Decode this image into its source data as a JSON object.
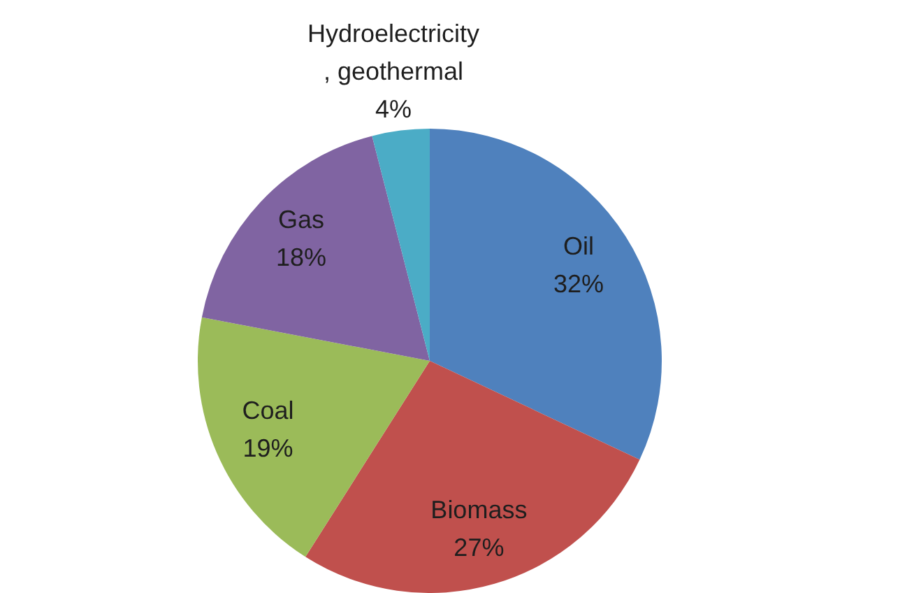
{
  "chart_data": {
    "type": "pie",
    "categories": [
      "Oil",
      "Biomass",
      "Coal",
      "Gas",
      "Hydroelectricity , geothermal"
    ],
    "values": [
      32,
      27,
      19,
      18,
      4
    ],
    "colors": [
      "#4f81bd",
      "#c0504d",
      "#9bbb59",
      "#8064a2",
      "#4bacc6"
    ],
    "value_labels": [
      "32%",
      "27%",
      "19%",
      "18%",
      "4%"
    ]
  }
}
